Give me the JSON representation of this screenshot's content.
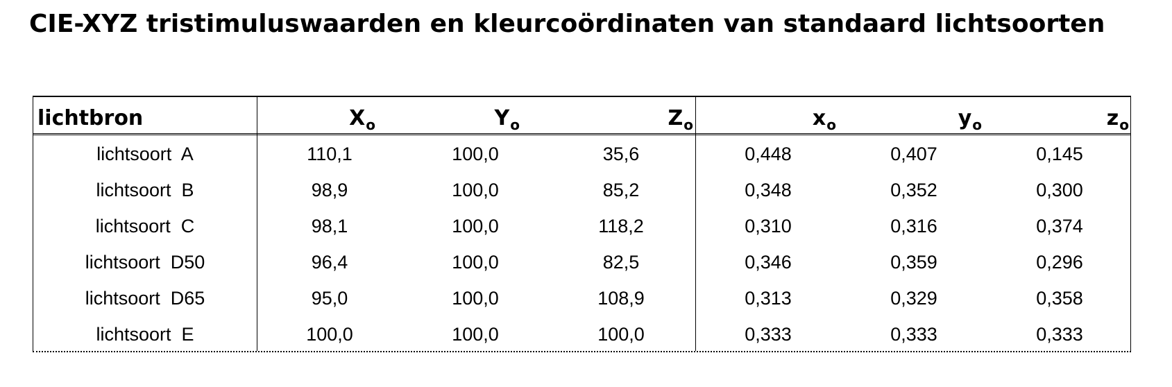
{
  "title": "CIE-XYZ tristimuluswaarden en kleurcoördinaten van standaard lichtsoorten",
  "table": {
    "header_label": "lichtbron",
    "columns": [
      {
        "main": "X",
        "sub": "o"
      },
      {
        "main": "Y",
        "sub": "o"
      },
      {
        "main": "Z",
        "sub": "o"
      },
      {
        "main": "x",
        "sub": "o"
      },
      {
        "main": "y",
        "sub": "o"
      },
      {
        "main": "z",
        "sub": "o"
      }
    ],
    "rows": [
      {
        "name": "lichtsoort  A",
        "X": "110,1",
        "Y": "100,0",
        "Z": "35,6",
        "x": "0,448",
        "y": "0,407",
        "z": "0,145"
      },
      {
        "name": "lichtsoort  B",
        "X": "98,9",
        "Y": "100,0",
        "Z": "85,2",
        "x": "0,348",
        "y": "0,352",
        "z": "0,300"
      },
      {
        "name": "lichtsoort  C",
        "X": "98,1",
        "Y": "100,0",
        "Z": "118,2",
        "x": "0,310",
        "y": "0,316",
        "z": "0,374"
      },
      {
        "name": "lichtsoort  D50",
        "X": "96,4",
        "Y": "100,0",
        "Z": "82,5",
        "x": "0,346",
        "y": "0,359",
        "z": "0,296"
      },
      {
        "name": "lichtsoort  D65",
        "X": "95,0",
        "Y": "100,0",
        "Z": "108,9",
        "x": "0,313",
        "y": "0,329",
        "z": "0,358"
      },
      {
        "name": "lichtsoort  E",
        "X": "100,0",
        "Y": "100,0",
        "Z": "100,0",
        "x": "0,333",
        "y": "0,333",
        "z": "0,333"
      }
    ]
  }
}
